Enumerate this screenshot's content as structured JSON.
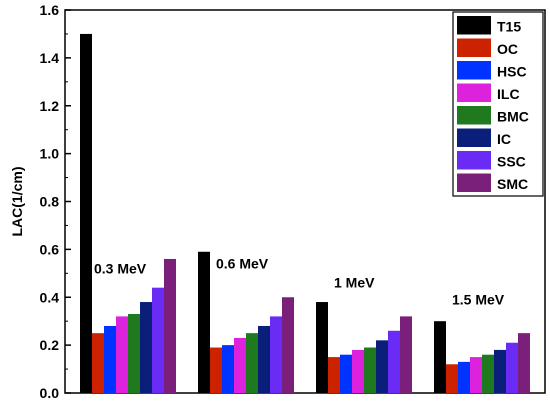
{
  "chart_data": {
    "type": "bar",
    "title": "",
    "xlabel": "",
    "ylabel": "LAC(1/cm)",
    "ylim": [
      0,
      1.6
    ],
    "yticks": [
      "0.0",
      "0.2",
      "0.4",
      "0.6",
      "0.8",
      "1.0",
      "1.2",
      "1.4",
      "1.6"
    ],
    "grid": false,
    "legend_position": "top-right",
    "categories": [
      "0.3 MeV",
      "0.6 MeV",
      "1 MeV",
      "1.5 MeV"
    ],
    "series": [
      {
        "name": "T15",
        "color": "#000000",
        "values": [
          1.5,
          0.59,
          0.38,
          0.3
        ]
      },
      {
        "name": "OC",
        "color": "#cc2200",
        "values": [
          0.25,
          0.19,
          0.15,
          0.12
        ]
      },
      {
        "name": "HSC",
        "color": "#0033ff",
        "values": [
          0.28,
          0.2,
          0.16,
          0.13
        ]
      },
      {
        "name": "ILC",
        "color": "#dd22dd",
        "values": [
          0.32,
          0.23,
          0.18,
          0.15
        ]
      },
      {
        "name": "BMC",
        "color": "#1f7a1f",
        "values": [
          0.33,
          0.25,
          0.19,
          0.16
        ]
      },
      {
        "name": "IC",
        "color": "#0a1f7a",
        "values": [
          0.38,
          0.28,
          0.22,
          0.18
        ]
      },
      {
        "name": "SSC",
        "color": "#6a2cf5",
        "values": [
          0.44,
          0.32,
          0.26,
          0.21
        ]
      },
      {
        "name": "SMC",
        "color": "#7a1f7a",
        "values": [
          0.56,
          0.4,
          0.32,
          0.25
        ]
      }
    ]
  }
}
